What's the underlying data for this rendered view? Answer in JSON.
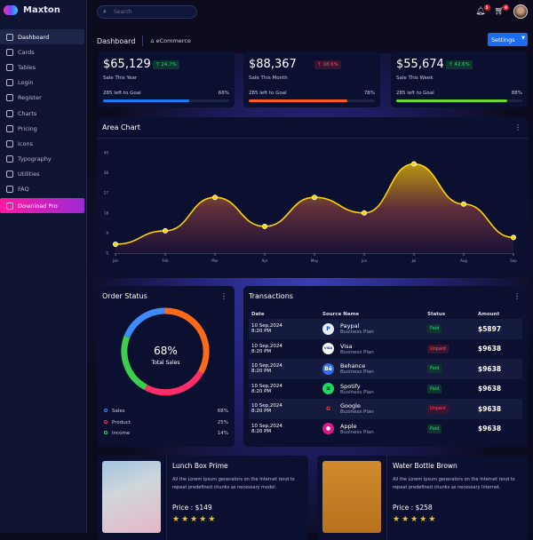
{
  "app": {
    "name": "Maxton"
  },
  "sidebar": {
    "items": [
      {
        "label": "Dashboard",
        "icon": "dashboard-icon"
      },
      {
        "label": "Cards",
        "icon": "card-icon"
      },
      {
        "label": "Tables",
        "icon": "table-icon"
      },
      {
        "label": "Login",
        "icon": "lock-icon"
      },
      {
        "label": "Register",
        "icon": "user-icon"
      },
      {
        "label": "Charts",
        "icon": "pie-chart-icon"
      },
      {
        "label": "Pricing",
        "icon": "piggy-bank-icon"
      },
      {
        "label": "Icons",
        "icon": "shield-icon"
      },
      {
        "label": "Typography",
        "icon": "pen-icon"
      },
      {
        "label": "Utilities",
        "icon": "help-icon"
      },
      {
        "label": "FAQ",
        "icon": "headset-icon"
      },
      {
        "label": "Download Pro",
        "icon": "cloud-download-icon"
      }
    ]
  },
  "header": {
    "search_placeholder": "Search",
    "notifications": "5",
    "cart": "8"
  },
  "breadcrumb": {
    "title": "Dashboard",
    "sub": "eCommerce"
  },
  "settings_label": "Settings",
  "stats": [
    {
      "value": "$65,129",
      "change": "24.7%",
      "dir": "up",
      "label": "Sale This Year",
      "goal": "285 left to Goal",
      "pct": "68%",
      "progress": 68,
      "color": "#1a7cf5"
    },
    {
      "value": "$88,367",
      "change": "18.6%",
      "dir": "up",
      "label": "Sale This Month",
      "goal": "285 left to Goal",
      "pct": "78%",
      "progress": 78,
      "color": "#ff5a1f"
    },
    {
      "value": "$55,674",
      "change": "42.6%",
      "dir": "up",
      "label": "Sale This Week",
      "goal": "285 left to Goal",
      "pct": "88%",
      "progress": 88,
      "color": "#6ad82a"
    }
  ],
  "chart_data": {
    "type": "area",
    "title": "Area Chart",
    "categories": [
      "Jan",
      "Feb",
      "Mar",
      "Apr",
      "May",
      "Jun",
      "Jul",
      "Aug",
      "Sep"
    ],
    "values": [
      4,
      10,
      25,
      12,
      25,
      18,
      40,
      22,
      7
    ],
    "ylim": [
      0,
      45
    ],
    "yticks": [
      "0",
      "9",
      "18",
      "27",
      "36",
      "45"
    ],
    "color": "#ffd200"
  },
  "order_status": {
    "title": "Order Status",
    "center_value": "68%",
    "center_label": "Total Sales",
    "legend": [
      {
        "label": "Sales",
        "value": "68%",
        "color": "#3c8cff"
      },
      {
        "label": "Product",
        "value": "25%",
        "color": "#ff2d55"
      },
      {
        "label": "Income",
        "value": "14%",
        "color": "#2fd37a"
      }
    ]
  },
  "transactions": {
    "title": "Transactions",
    "columns": [
      "Date",
      "Source Name",
      "Status",
      "Amount"
    ],
    "rows": [
      {
        "date": "10 Sep,2024",
        "time": "8:20 PM",
        "name": "Paypal",
        "plan": "Business Plan",
        "status": "Paid",
        "amount": "$5897",
        "logo": "P",
        "bg": "#e8f0ff",
        "fg": "#1a4fc4"
      },
      {
        "date": "10 Sep,2024",
        "time": "8:20 PM",
        "name": "Visa",
        "plan": "Business Plan",
        "status": "Unpaid",
        "amount": "$9638",
        "logo": "VISA",
        "bg": "#ffffff",
        "fg": "#1a2a8a"
      },
      {
        "date": "10 Sep,2024",
        "time": "8:20 PM",
        "name": "Behance",
        "plan": "Business Plan",
        "status": "Paid",
        "amount": "$9638",
        "logo": "Bē",
        "bg": "#2f6cf0",
        "fg": "#fff"
      },
      {
        "date": "10 Sep,2024",
        "time": "8:20 PM",
        "name": "Spotify",
        "plan": "Business Plan",
        "status": "Paid",
        "amount": "$9638",
        "logo": "≋",
        "bg": "#1ed760",
        "fg": "#111"
      },
      {
        "date": "10 Sep,2024",
        "time": "8:20 PM",
        "name": "Google",
        "plan": "Business Plan",
        "status": "Unpaid",
        "amount": "$9638",
        "logo": "G",
        "bg": "transparent",
        "fg": "#ea4335"
      },
      {
        "date": "10 Sep,2024",
        "time": "8:20 PM",
        "name": "Apple",
        "plan": "Business Plan",
        "status": "Paid",
        "amount": "$9638",
        "logo": "",
        "bg": "#e0168a",
        "fg": "#fff"
      }
    ]
  },
  "products": [
    {
      "title": "Lunch Box Prime",
      "desc": "All the Lorem Ipsum generators on the Internet tend to repeat predefined chunks as necessary model.",
      "price": "Price : $149",
      "rating": 5
    },
    {
      "title": "Water Bottle Brown",
      "desc": "All the Lorem Ipsum generators on the Internet tend to repeat predefined chunks as necessary Internet.",
      "price": "Price : $258",
      "rating": 5
    }
  ]
}
